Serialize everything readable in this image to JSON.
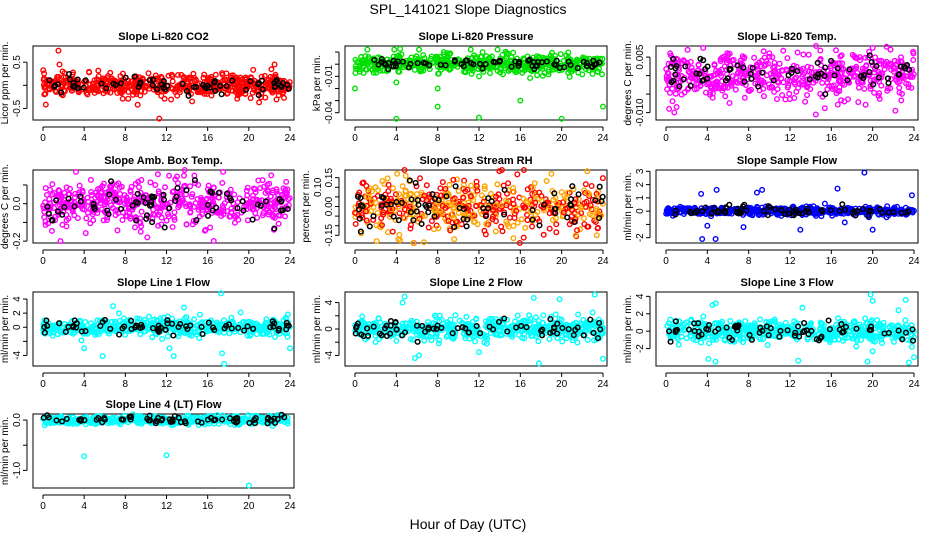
{
  "title": "SPL_141021  Slope Diagnostics",
  "xlabel": "Hour of Day (UTC)",
  "chart_data": [
    {
      "type": "scatter",
      "title": "Slope Li-820 CO2",
      "ylabel": "Licor ppm per min.",
      "color": "#ff0000",
      "xlim": [
        0,
        24
      ],
      "xticks": [
        0,
        4,
        8,
        12,
        16,
        20,
        24
      ],
      "ylim": [
        -0.75,
        0.85
      ],
      "yticks": [
        -0.5,
        0,
        0.5
      ],
      "yticklabels": [
        "-0.5",
        "",
        "0.5"
      ],
      "spread": 0.12,
      "black_spread": 0.08,
      "outliers": [
        [
          1.5,
          0.75
        ],
        [
          1.6,
          0.45
        ],
        [
          11.3,
          -0.72
        ],
        [
          9.2,
          -0.42
        ],
        [
          21,
          -0.37
        ],
        [
          22.5,
          0.45
        ],
        [
          1.9,
          0.3
        ]
      ]
    },
    {
      "type": "scatter",
      "title": "Slope Li-820 Pressure",
      "ylabel": "kPa per min.",
      "color": "#00e000",
      "xlim": [
        0,
        24
      ],
      "xticks": [
        0,
        4,
        8,
        12,
        16,
        20,
        24
      ],
      "ylim": [
        -0.046,
        0.015
      ],
      "yticks": [
        -0.04,
        -0.03,
        -0.02,
        -0.01,
        0,
        0.01
      ],
      "yticklabels": [
        "-0.04",
        "",
        "",
        "-0.01",
        "",
        ""
      ],
      "spread": 0.004,
      "black_spread": 0.002,
      "center": 0,
      "outliers": [
        [
          0,
          -0.02
        ],
        [
          4,
          -0.045
        ],
        [
          8,
          -0.02
        ],
        [
          8,
          -0.035
        ],
        [
          12,
          -0.044
        ],
        [
          16,
          -0.03
        ],
        [
          20,
          -0.045
        ],
        [
          24,
          -0.035
        ],
        [
          1.2,
          0.012
        ],
        [
          3.8,
          0.012
        ],
        [
          6.2,
          0.012
        ],
        [
          11.2,
          0.012
        ],
        [
          13.8,
          0.012
        ],
        [
          0.6,
          0.006
        ],
        [
          4.5,
          0.008
        ],
        [
          8.6,
          0.01
        ],
        [
          12,
          -0.01
        ],
        [
          4,
          -0.015
        ]
      ]
    },
    {
      "type": "scatter",
      "title": "Slope Li-820 Temp.",
      "ylabel": "degrees C per min.",
      "color": "#ff00ff",
      "xlim": [
        0,
        24
      ],
      "xticks": [
        0,
        4,
        8,
        12,
        16,
        20,
        24
      ],
      "ylim": [
        -0.012,
        0.008
      ],
      "yticks": [
        -0.01,
        -0.005,
        0,
        0.005
      ],
      "yticklabels": [
        "-0.010",
        "",
        "",
        "0.005"
      ],
      "spread": 0.003,
      "black_spread": 0.0025,
      "outliers": [
        [
          0.3,
          -0.009
        ],
        [
          3.6,
          0.0075
        ],
        [
          20,
          0.0075
        ],
        [
          14.5,
          -0.0105
        ],
        [
          0.4,
          0.006
        ],
        [
          22.2,
          -0.0095
        ],
        [
          17,
          0.0055
        ],
        [
          10,
          0.006
        ]
      ]
    },
    {
      "type": "scatter",
      "title": "Slope Amb. Box Temp.",
      "ylabel": "degrees C per min.",
      "color": "#ff00ff",
      "xlim": [
        0,
        24
      ],
      "xticks": [
        0,
        4,
        8,
        12,
        16,
        20,
        24
      ],
      "ylim": [
        -0.21,
        0.18
      ],
      "yticks": [
        -0.2,
        -0.1,
        0,
        0.1
      ],
      "yticklabels": [
        "-0.2",
        "",
        "0.0",
        ""
      ],
      "spread": 0.06,
      "black_spread": 0.05,
      "outliers": [
        [
          1.7,
          -0.2
        ],
        [
          3.2,
          0.17
        ],
        [
          17.5,
          0.17
        ],
        [
          13.7,
          0.15
        ],
        [
          9.5,
          -0.15
        ],
        [
          15.8,
          -0.14
        ]
      ]
    },
    {
      "type": "scatter",
      "title": "Slope Gas Stream RH",
      "ylabel": "percent per min.",
      "color": "#ffa500",
      "edge": "#ff0000",
      "xlim": [
        0,
        24
      ],
      "xticks": [
        0,
        4,
        8,
        12,
        16,
        20,
        24
      ],
      "ylim": [
        -0.19,
        0.19
      ],
      "yticks": [
        -0.15,
        -0.1,
        -0.05,
        0,
        0.05,
        0.1,
        0.15
      ],
      "yticklabels": [
        "-0.15",
        "",
        "",
        "0.00",
        "",
        "0.10",
        "0.15"
      ],
      "spread": 0.07,
      "black_spread": 0.06,
      "outliers": [
        [
          2.1,
          -0.18
        ],
        [
          4.2,
          -0.17
        ],
        [
          9.6,
          -0.17
        ],
        [
          19,
          0.17
        ],
        [
          4.9,
          0.16
        ],
        [
          0.6,
          -0.14
        ]
      ]
    },
    {
      "type": "scatter",
      "title": "Slope Sample Flow",
      "ylabel": "ml/min per min.",
      "color": "#0000ff",
      "xlim": [
        0,
        24
      ],
      "xticks": [
        0,
        4,
        8,
        12,
        16,
        20,
        24
      ],
      "ylim": [
        -2.4,
        3.1
      ],
      "yticks": [
        -2,
        -1,
        0,
        1,
        2,
        3
      ],
      "yticklabels": [
        "-2",
        "",
        "0",
        "1",
        "2",
        "3"
      ],
      "spread": 0.15,
      "black_spread": 0.2,
      "outliers": [
        [
          19.2,
          2.9
        ],
        [
          3.5,
          -2.1
        ],
        [
          4.8,
          -2.1
        ],
        [
          4.9,
          1.6
        ],
        [
          3.4,
          1.3
        ],
        [
          8.8,
          1.4
        ],
        [
          9.3,
          1.6
        ],
        [
          16.6,
          1.7
        ],
        [
          23.8,
          1.2
        ],
        [
          13,
          -1.4
        ],
        [
          7.5,
          -1.2
        ],
        [
          17.3,
          -0.85
        ],
        [
          4,
          -1.1
        ],
        [
          20,
          -1.4
        ]
      ]
    },
    {
      "type": "scatter",
      "title": "Slope Line 1 Flow",
      "ylabel": "ml/min per min.",
      "color": "#00ffff",
      "xlim": [
        0,
        24
      ],
      "xticks": [
        0,
        4,
        8,
        12,
        16,
        20,
        24
      ],
      "ylim": [
        -5.5,
        5
      ],
      "yticks": [
        -4,
        -2,
        0,
        2,
        4
      ],
      "yticklabels": [
        "-4",
        "",
        "0",
        "2",
        "4"
      ],
      "spread": 0.6,
      "black_spread": 0.5,
      "outliers": [
        [
          17.3,
          4.8
        ],
        [
          17.6,
          -5.2
        ],
        [
          5.8,
          -4.1
        ],
        [
          12.7,
          -4.1
        ],
        [
          4,
          -3
        ],
        [
          24,
          -3
        ],
        [
          17.4,
          -3.7
        ],
        [
          6.8,
          3
        ],
        [
          13.7,
          2.8
        ],
        [
          19.2,
          2.1
        ],
        [
          23.8,
          1.8
        ],
        [
          12.3,
          -3
        ]
      ]
    },
    {
      "type": "scatter",
      "title": "Slope Line 2 Flow",
      "ylabel": "ml/min per min.",
      "color": "#00ffff",
      "xlim": [
        0,
        24
      ],
      "xticks": [
        0,
        4,
        8,
        12,
        16,
        20,
        24
      ],
      "ylim": [
        -5.6,
        5.6
      ],
      "yticks": [
        -4,
        -2,
        0,
        2,
        4
      ],
      "yticklabels": [
        "-4",
        "",
        "0",
        "",
        "4"
      ],
      "spread": 0.8,
      "black_spread": 0.8,
      "outliers": [
        [
          4.8,
          4.9
        ],
        [
          4.6,
          4
        ],
        [
          17.3,
          4.7
        ],
        [
          19.8,
          4.5
        ],
        [
          23.2,
          5.2
        ],
        [
          17.8,
          -5.2
        ],
        [
          24,
          -4.5
        ],
        [
          5.8,
          -4.4
        ],
        [
          6.2,
          -4
        ],
        [
          12,
          -3.5
        ],
        [
          4,
          -1.8
        ],
        [
          23,
          2.5
        ]
      ]
    },
    {
      "type": "scatter",
      "title": "Slope Line 3 Flow",
      "ylabel": "ml/min per min.",
      "color": "#00ffff",
      "xlim": [
        0,
        24
      ],
      "xticks": [
        0,
        4,
        8,
        12,
        16,
        20,
        24
      ],
      "ylim": [
        -4,
        4.5
      ],
      "yticks": [
        -2,
        0,
        2,
        4
      ],
      "yticklabels": [
        "-2",
        "0",
        "2",
        "4"
      ],
      "spread": 0.6,
      "black_spread": 0.6,
      "outliers": [
        [
          19.8,
          4.2
        ],
        [
          20,
          3.5
        ],
        [
          4.5,
          3
        ],
        [
          4.8,
          3.2
        ],
        [
          23.2,
          3.6
        ],
        [
          22.5,
          2.4
        ],
        [
          4.1,
          -3.2
        ],
        [
          4.8,
          -3.5
        ],
        [
          12.8,
          -3.4
        ],
        [
          19.5,
          -3.5
        ],
        [
          23.5,
          -3.6
        ],
        [
          24,
          -3
        ],
        [
          23.8,
          -1.8
        ],
        [
          20,
          -2.3
        ],
        [
          13.2,
          2.7
        ]
      ]
    },
    {
      "type": "scatter",
      "title": "Slope Line 4 (LT) Flow",
      "ylabel": "ml/min per min.",
      "color": "#00ffff",
      "xlim": [
        0,
        24
      ],
      "xticks": [
        0,
        4,
        8,
        12,
        16,
        20,
        24
      ],
      "ylim": [
        -1.35,
        0.12
      ],
      "yticks": [
        -1,
        -0.5,
        0
      ],
      "yticklabels": [
        "-1.0",
        "",
        "0.0"
      ],
      "spread": 0.04,
      "black_spread": 0.04,
      "outliers": [
        [
          4,
          -0.72
        ],
        [
          12,
          -0.7
        ],
        [
          20,
          -1.3
        ]
      ]
    }
  ]
}
